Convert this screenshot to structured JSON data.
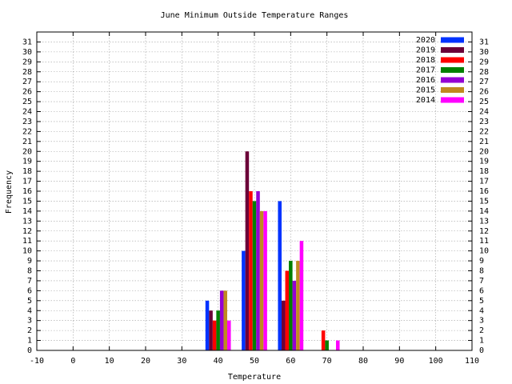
{
  "chart_data": {
    "type": "bar",
    "title": "June Minimum Outside Temperature Ranges",
    "x_label": "Temperature",
    "y_label": "Frequency",
    "x": [
      40,
      50,
      60,
      70
    ],
    "series": [
      {
        "name": "2020",
        "color": "#0033ff",
        "values": [
          5,
          10,
          15,
          0
        ]
      },
      {
        "name": "2019",
        "color": "#6b0038",
        "values": [
          4,
          20,
          5,
          0
        ]
      },
      {
        "name": "2018",
        "color": "#ff0000",
        "values": [
          3,
          16,
          8,
          2
        ]
      },
      {
        "name": "2017",
        "color": "#008000",
        "values": [
          4,
          15,
          9,
          1
        ]
      },
      {
        "name": "2016",
        "color": "#9400d3",
        "values": [
          6,
          16,
          7,
          0
        ]
      },
      {
        "name": "2015",
        "color": "#c08a20",
        "values": [
          6,
          14,
          9,
          0
        ]
      },
      {
        "name": "2014",
        "color": "#ff00ff",
        "values": [
          3,
          14,
          11,
          1
        ]
      }
    ],
    "xlim": [
      -10,
      110
    ],
    "xticks": [
      -10,
      0,
      10,
      20,
      30,
      40,
      50,
      60,
      70,
      80,
      90,
      100,
      110
    ],
    "ylim": [
      0,
      32
    ],
    "yticks": [
      0,
      1,
      2,
      3,
      4,
      5,
      6,
      7,
      8,
      9,
      10,
      11,
      12,
      13,
      14,
      15,
      16,
      17,
      18,
      19,
      20,
      21,
      22,
      23,
      24,
      25,
      26,
      27,
      28,
      29,
      30,
      31
    ],
    "grid": true,
    "legend": "top-right"
  }
}
